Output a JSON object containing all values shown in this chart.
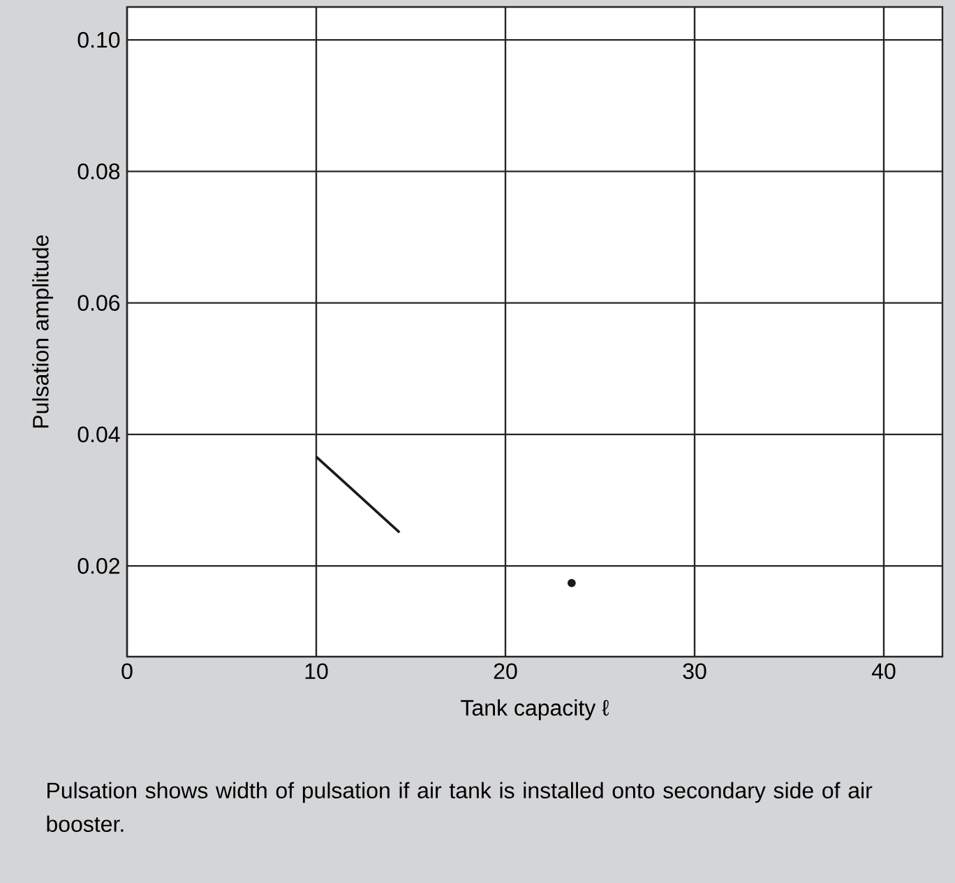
{
  "chart_data": {
    "type": "line",
    "xlabel": "Tank capacity ℓ",
    "ylabel": "Pulsation amplitude",
    "xlim": [
      0,
      43.1
    ],
    "ylim": [
      0.0062,
      0.105
    ],
    "xticks": [
      0,
      10,
      20,
      30,
      40
    ],
    "yticks": [
      0.02,
      0.04,
      0.06,
      0.08,
      {
        "value": 0.1,
        "label": "0.10"
      }
    ],
    "grid": true,
    "series": [
      {
        "color": "#1a1a1a",
        "x": [
          10,
          14.4
        ],
        "values": [
          0.0366,
          0.0251
        ],
        "marker": "none"
      },
      {
        "type": "scatter",
        "color": "#1a1a1a",
        "x": [
          23.5
        ],
        "values": [
          0.0174
        ],
        "marker": "circle"
      }
    ],
    "annotations": [
      "Pulsation shows width of pulsation if air tank is installed onto secondary side of air booster."
    ]
  }
}
